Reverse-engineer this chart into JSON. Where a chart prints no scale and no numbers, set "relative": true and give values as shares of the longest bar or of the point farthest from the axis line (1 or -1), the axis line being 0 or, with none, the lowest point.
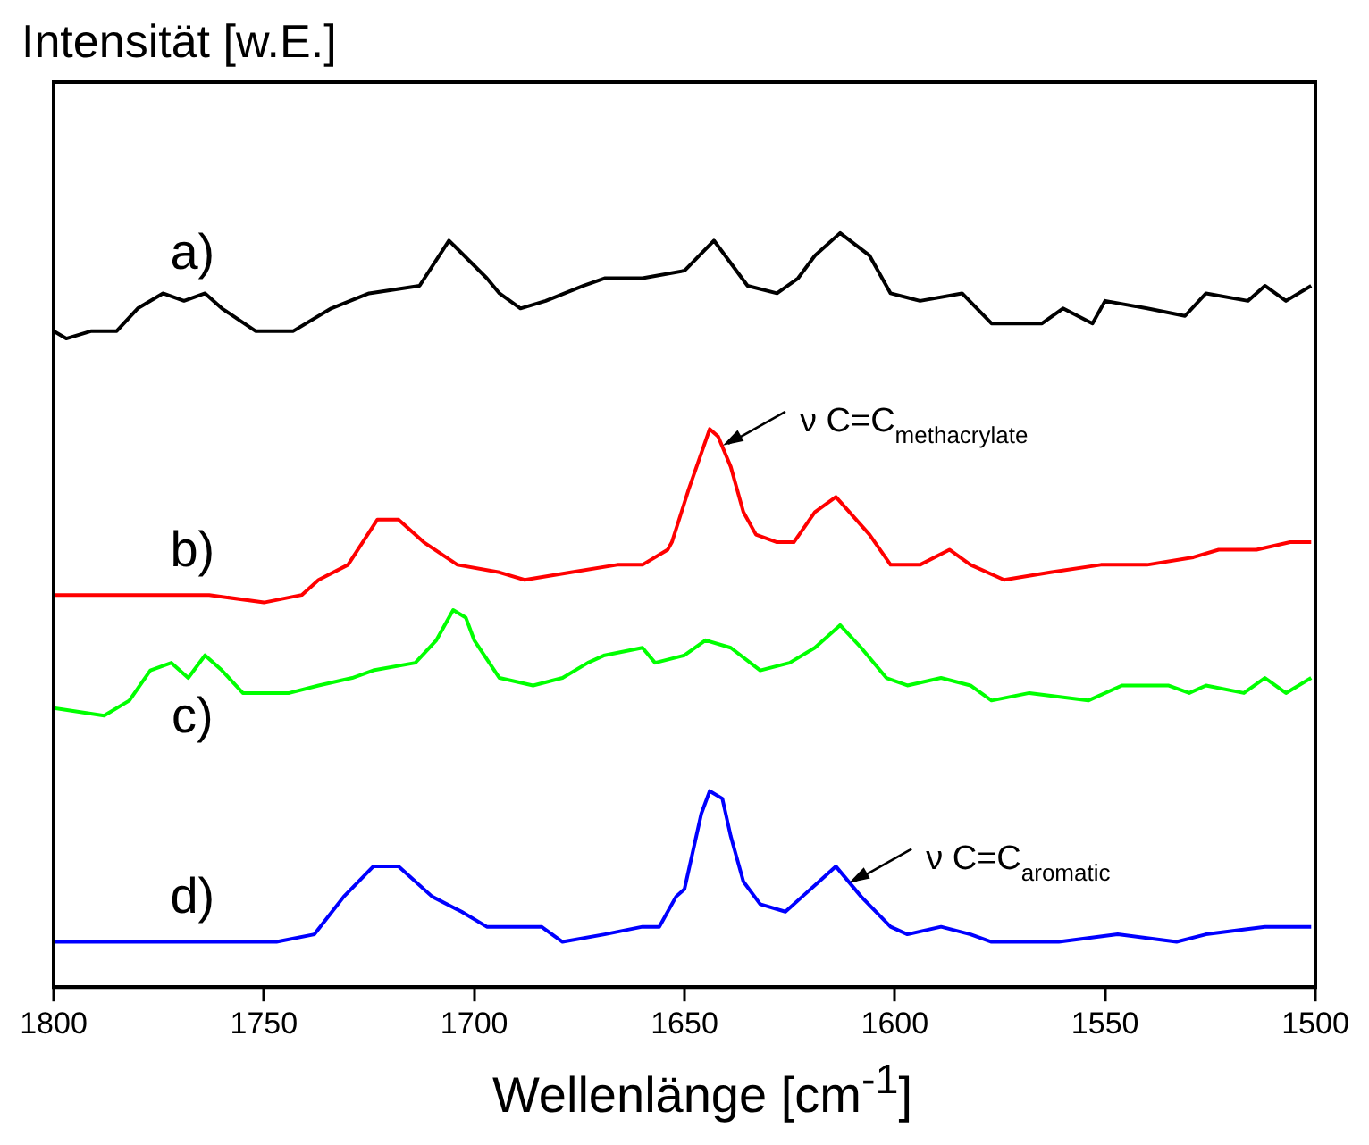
{
  "chart_data": {
    "type": "line",
    "relative": true,
    "ylabel": "Intensität [w.E.]",
    "xlabel": "Wellenlänge [cm$^{-1}$]",
    "xlim": [
      1800,
      1500
    ],
    "xticks": [
      1800,
      1750,
      1700,
      1650,
      1600,
      1550,
      1500
    ],
    "grid": false,
    "legend": false,
    "marker": "none",
    "line_style": "solid",
    "series": [
      {
        "name": "a)",
        "color": "#000000",
        "x": [
          1800,
          1797,
          1791,
          1785,
          1780,
          1774,
          1769,
          1764,
          1760,
          1752,
          1743,
          1734,
          1725,
          1713,
          1706,
          1697,
          1694,
          1689,
          1683,
          1674,
          1669,
          1660,
          1650,
          1643,
          1635,
          1628,
          1623,
          1619,
          1613,
          1606,
          1601,
          1594,
          1584,
          1577,
          1565,
          1560,
          1553,
          1550,
          1540,
          1531,
          1526,
          1516,
          1512,
          1507,
          1501
        ],
        "values": [
          0.87,
          0.86,
          0.87,
          0.87,
          0.9,
          0.92,
          0.91,
          0.92,
          0.9,
          0.87,
          0.87,
          0.9,
          0.92,
          0.93,
          0.99,
          0.94,
          0.92,
          0.9,
          0.91,
          0.93,
          0.94,
          0.94,
          0.95,
          0.99,
          0.93,
          0.92,
          0.94,
          0.97,
          1.0,
          0.97,
          0.92,
          0.91,
          0.92,
          0.88,
          0.88,
          0.9,
          0.88,
          0.91,
          0.9,
          0.89,
          0.92,
          0.91,
          0.93,
          0.91,
          0.93
        ]
      },
      {
        "name": "b)",
        "color": "#ff0000",
        "x": [
          1800,
          1781,
          1763,
          1750,
          1741,
          1737,
          1730,
          1723,
          1718,
          1712,
          1704,
          1694,
          1688,
          1677,
          1666,
          1660,
          1654,
          1653,
          1649,
          1644,
          1642,
          1639,
          1636,
          1633,
          1628,
          1624,
          1619,
          1614,
          1606,
          1601,
          1594,
          1587,
          1582,
          1574,
          1563,
          1551,
          1540,
          1529,
          1523,
          1514,
          1506,
          1501
        ],
        "values": [
          0.52,
          0.52,
          0.52,
          0.51,
          0.52,
          0.54,
          0.56,
          0.62,
          0.62,
          0.59,
          0.56,
          0.55,
          0.54,
          0.55,
          0.56,
          0.56,
          0.58,
          0.59,
          0.66,
          0.74,
          0.73,
          0.69,
          0.63,
          0.6,
          0.59,
          0.59,
          0.63,
          0.65,
          0.6,
          0.56,
          0.56,
          0.58,
          0.56,
          0.54,
          0.55,
          0.56,
          0.56,
          0.57,
          0.58,
          0.58,
          0.59,
          0.59
        ]
      },
      {
        "name": "c)",
        "color": "#00ff00",
        "x": [
          1800,
          1788,
          1782,
          1777,
          1772,
          1768,
          1764,
          1760,
          1755,
          1744,
          1737,
          1729,
          1724,
          1714,
          1709,
          1705,
          1702,
          1700,
          1694,
          1686,
          1679,
          1673,
          1669,
          1660,
          1657,
          1650,
          1645,
          1639,
          1632,
          1625,
          1619,
          1613,
          1608,
          1602,
          1597,
          1589,
          1582,
          1577,
          1568,
          1554,
          1546,
          1535,
          1530,
          1526,
          1517,
          1512,
          1507,
          1501
        ],
        "values": [
          0.37,
          0.36,
          0.38,
          0.42,
          0.43,
          0.41,
          0.44,
          0.42,
          0.39,
          0.39,
          0.4,
          0.41,
          0.42,
          0.43,
          0.46,
          0.5,
          0.49,
          0.46,
          0.41,
          0.4,
          0.41,
          0.43,
          0.44,
          0.45,
          0.43,
          0.44,
          0.46,
          0.45,
          0.42,
          0.43,
          0.45,
          0.48,
          0.45,
          0.41,
          0.4,
          0.41,
          0.4,
          0.38,
          0.39,
          0.38,
          0.4,
          0.4,
          0.39,
          0.4,
          0.39,
          0.41,
          0.39,
          0.41
        ]
      },
      {
        "name": "d)",
        "color": "#0000ff",
        "x": [
          1800,
          1774,
          1747,
          1738,
          1731,
          1724,
          1718,
          1710,
          1703,
          1697,
          1684,
          1679,
          1669,
          1660,
          1656,
          1652,
          1650,
          1646,
          1644,
          1641,
          1639,
          1636,
          1632,
          1626,
          1622,
          1618,
          1614,
          1608,
          1601,
          1597,
          1589,
          1582,
          1577,
          1561,
          1547,
          1533,
          1526,
          1512,
          1501
        ],
        "values": [
          0.06,
          0.06,
          0.06,
          0.07,
          0.12,
          0.16,
          0.16,
          0.12,
          0.1,
          0.08,
          0.08,
          0.06,
          0.07,
          0.08,
          0.08,
          0.12,
          0.13,
          0.23,
          0.26,
          0.25,
          0.2,
          0.14,
          0.11,
          0.1,
          0.12,
          0.14,
          0.16,
          0.12,
          0.08,
          0.07,
          0.08,
          0.07,
          0.06,
          0.06,
          0.07,
          0.06,
          0.07,
          0.08,
          0.08
        ]
      }
    ],
    "annotations": [
      {
        "text": "ν C=C$_{methacrylate}$",
        "x": 1643,
        "y": 0.73
      },
      {
        "text": "ν C=C$_{aromatic}$",
        "x": 1613,
        "y": 0.15
      }
    ]
  }
}
